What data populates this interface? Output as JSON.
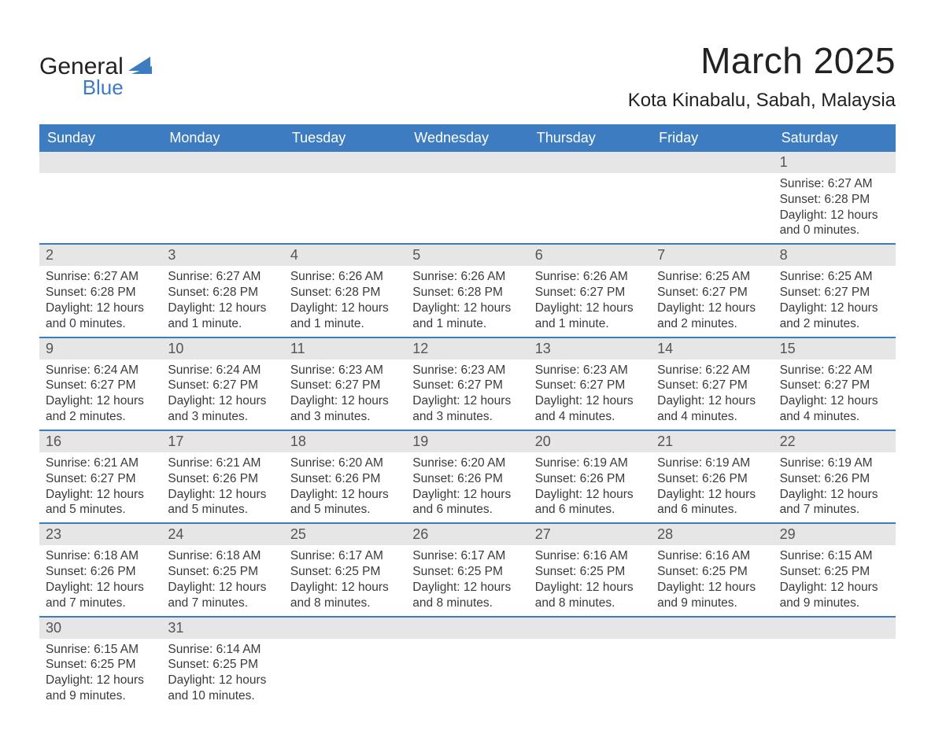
{
  "logo": {
    "top": "General",
    "bottom": "Blue"
  },
  "title": "March 2025",
  "subtitle": "Kota Kinabalu, Sabah, Malaysia",
  "weekdays": [
    "Sunday",
    "Monday",
    "Tuesday",
    "Wednesday",
    "Thursday",
    "Friday",
    "Saturday"
  ],
  "colors": {
    "header_blue": "#3d7cc0",
    "daynum_bg": "#e6e6e6",
    "text": "#3a3a3a"
  },
  "weeks": [
    [
      null,
      null,
      null,
      null,
      null,
      null,
      {
        "n": "1",
        "sr": "6:27 AM",
        "ss": "6:28 PM",
        "dl": "12 hours and 0 minutes."
      }
    ],
    [
      {
        "n": "2",
        "sr": "6:27 AM",
        "ss": "6:28 PM",
        "dl": "12 hours and 0 minutes."
      },
      {
        "n": "3",
        "sr": "6:27 AM",
        "ss": "6:28 PM",
        "dl": "12 hours and 1 minute."
      },
      {
        "n": "4",
        "sr": "6:26 AM",
        "ss": "6:28 PM",
        "dl": "12 hours and 1 minute."
      },
      {
        "n": "5",
        "sr": "6:26 AM",
        "ss": "6:28 PM",
        "dl": "12 hours and 1 minute."
      },
      {
        "n": "6",
        "sr": "6:26 AM",
        "ss": "6:27 PM",
        "dl": "12 hours and 1 minute."
      },
      {
        "n": "7",
        "sr": "6:25 AM",
        "ss": "6:27 PM",
        "dl": "12 hours and 2 minutes."
      },
      {
        "n": "8",
        "sr": "6:25 AM",
        "ss": "6:27 PM",
        "dl": "12 hours and 2 minutes."
      }
    ],
    [
      {
        "n": "9",
        "sr": "6:24 AM",
        "ss": "6:27 PM",
        "dl": "12 hours and 2 minutes."
      },
      {
        "n": "10",
        "sr": "6:24 AM",
        "ss": "6:27 PM",
        "dl": "12 hours and 3 minutes."
      },
      {
        "n": "11",
        "sr": "6:23 AM",
        "ss": "6:27 PM",
        "dl": "12 hours and 3 minutes."
      },
      {
        "n": "12",
        "sr": "6:23 AM",
        "ss": "6:27 PM",
        "dl": "12 hours and 3 minutes."
      },
      {
        "n": "13",
        "sr": "6:23 AM",
        "ss": "6:27 PM",
        "dl": "12 hours and 4 minutes."
      },
      {
        "n": "14",
        "sr": "6:22 AM",
        "ss": "6:27 PM",
        "dl": "12 hours and 4 minutes."
      },
      {
        "n": "15",
        "sr": "6:22 AM",
        "ss": "6:27 PM",
        "dl": "12 hours and 4 minutes."
      }
    ],
    [
      {
        "n": "16",
        "sr": "6:21 AM",
        "ss": "6:27 PM",
        "dl": "12 hours and 5 minutes."
      },
      {
        "n": "17",
        "sr": "6:21 AM",
        "ss": "6:26 PM",
        "dl": "12 hours and 5 minutes."
      },
      {
        "n": "18",
        "sr": "6:20 AM",
        "ss": "6:26 PM",
        "dl": "12 hours and 5 minutes."
      },
      {
        "n": "19",
        "sr": "6:20 AM",
        "ss": "6:26 PM",
        "dl": "12 hours and 6 minutes."
      },
      {
        "n": "20",
        "sr": "6:19 AM",
        "ss": "6:26 PM",
        "dl": "12 hours and 6 minutes."
      },
      {
        "n": "21",
        "sr": "6:19 AM",
        "ss": "6:26 PM",
        "dl": "12 hours and 6 minutes."
      },
      {
        "n": "22",
        "sr": "6:19 AM",
        "ss": "6:26 PM",
        "dl": "12 hours and 7 minutes."
      }
    ],
    [
      {
        "n": "23",
        "sr": "6:18 AM",
        "ss": "6:26 PM",
        "dl": "12 hours and 7 minutes."
      },
      {
        "n": "24",
        "sr": "6:18 AM",
        "ss": "6:25 PM",
        "dl": "12 hours and 7 minutes."
      },
      {
        "n": "25",
        "sr": "6:17 AM",
        "ss": "6:25 PM",
        "dl": "12 hours and 8 minutes."
      },
      {
        "n": "26",
        "sr": "6:17 AM",
        "ss": "6:25 PM",
        "dl": "12 hours and 8 minutes."
      },
      {
        "n": "27",
        "sr": "6:16 AM",
        "ss": "6:25 PM",
        "dl": "12 hours and 8 minutes."
      },
      {
        "n": "28",
        "sr": "6:16 AM",
        "ss": "6:25 PM",
        "dl": "12 hours and 9 minutes."
      },
      {
        "n": "29",
        "sr": "6:15 AM",
        "ss": "6:25 PM",
        "dl": "12 hours and 9 minutes."
      }
    ],
    [
      {
        "n": "30",
        "sr": "6:15 AM",
        "ss": "6:25 PM",
        "dl": "12 hours and 9 minutes."
      },
      {
        "n": "31",
        "sr": "6:14 AM",
        "ss": "6:25 PM",
        "dl": "12 hours and 10 minutes."
      },
      null,
      null,
      null,
      null,
      null
    ]
  ],
  "labels": {
    "sunrise": "Sunrise:",
    "sunset": "Sunset:",
    "daylight": "Daylight:"
  }
}
